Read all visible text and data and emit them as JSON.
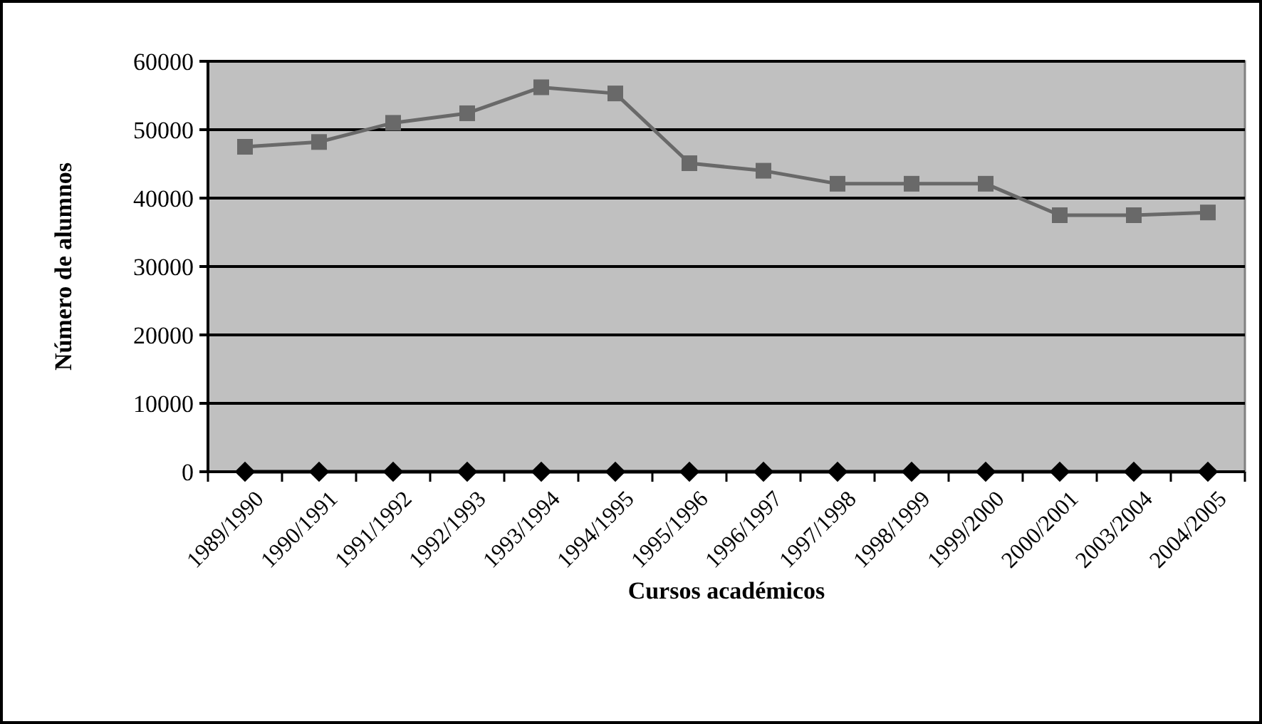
{
  "chart_data": {
    "type": "line",
    "xlabel": "Cursos académicos",
    "ylabel": "Número de alumnos",
    "categories": [
      "1989/1990",
      "1990/1991",
      "1991/1992",
      "1992/1993",
      "1993/1994",
      "1994/1995",
      "1995/1996",
      "1996/1997",
      "1997/1998",
      "1998/1999",
      "1999/2000",
      "2000/2001",
      "2003/2004",
      "2004/2005"
    ],
    "series": [
      {
        "color": "#000000",
        "marker": "diamond",
        "values": [
          0,
          0,
          0,
          0,
          0,
          0,
          0,
          0,
          0,
          0,
          0,
          0,
          0,
          0
        ]
      },
      {
        "color": "#696969",
        "marker": "square",
        "values": [
          47500,
          48200,
          51000,
          52400,
          56200,
          55300,
          45100,
          44000,
          42100,
          42100,
          42100,
          37500,
          37500,
          37900
        ]
      }
    ],
    "ylim": [
      0,
      60000
    ],
    "yticks": [
      0,
      10000,
      20000,
      30000,
      40000,
      50000,
      60000
    ],
    "grid": "y"
  }
}
